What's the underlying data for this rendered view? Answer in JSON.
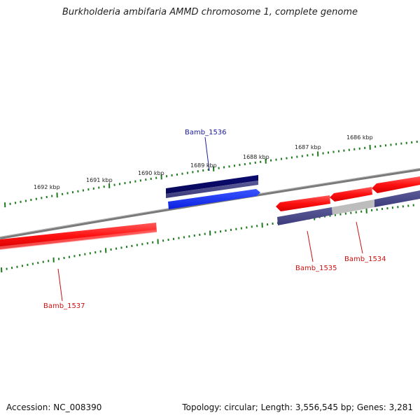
{
  "title": "Burkholderia ambifaria AMMD chromosome 1, complete genome",
  "footer": {
    "accession": "Accession: NC_008390",
    "summary": "Topology: circular; Length: 3,556,545 bp; Genes: 3,281"
  },
  "colors": {
    "backbone": "#888888",
    "tick": "#1e7b1e",
    "reverse_gene": "#ff1a1a",
    "forward_gene": "#0a2bff",
    "forward_gene_dark": "#0b0b70",
    "reverse_feature": "#4d4d8c",
    "reverse_feature_grey": "#bbbbbb",
    "label_blue": "#1a1aa0",
    "label_red": "#cc1111"
  },
  "kbp_labels": [
    "1692 kbp",
    "1691 kbp",
    "1690 kbp",
    "1689 kbp",
    "1688 kbp",
    "1687 kbp",
    "1686 kbp"
  ],
  "genes": [
    {
      "name": "Bamb_1536",
      "strand": "forward",
      "color": "label_blue"
    },
    {
      "name": "Bamb_1537",
      "strand": "reverse",
      "color": "label_red"
    },
    {
      "name": "Bamb_1535",
      "strand": "reverse",
      "color": "label_red"
    },
    {
      "name": "Bamb_1534",
      "strand": "reverse",
      "color": "label_red"
    }
  ]
}
